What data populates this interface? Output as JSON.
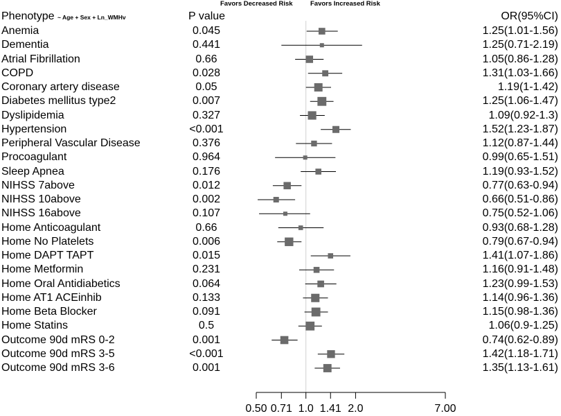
{
  "header": {
    "phenotype": "Phenotype",
    "phenotype_sub": "~ Age + Sex + Ln_WMHv",
    "pvalue": "P value",
    "or": "OR(95%CI)",
    "favors_decreased": "Favors Decreased Risk",
    "favors_increased": "Favors Increased Risk"
  },
  "chart_data": {
    "type": "forest",
    "title": "",
    "xlabel": "OR(95%CI)",
    "x_scale": "log",
    "reference_line": 1.0,
    "xlim": [
      0.5,
      7.0
    ],
    "xticks": [
      0.5,
      0.71,
      1.0,
      1.41,
      2.0,
      7.0
    ],
    "xtick_labels": [
      "0.50",
      "0.71",
      "1.0",
      "1.41",
      "2.0",
      "7.00"
    ],
    "rows": [
      {
        "label": "Anemia",
        "p": "0.045",
        "or": 1.25,
        "lo": 1.01,
        "hi": 1.56,
        "or_text": "1.25(1.01-1.56)"
      },
      {
        "label": "Dementia",
        "p": "0.441",
        "or": 1.25,
        "lo": 0.71,
        "hi": 2.19,
        "or_text": "1.25(0.71-2.19)"
      },
      {
        "label": "Atrial Fibrillation",
        "p": "0.66",
        "or": 1.05,
        "lo": 0.86,
        "hi": 1.28,
        "or_text": "1.05(0.86-1.28)"
      },
      {
        "label": "COPD",
        "p": "0.028",
        "or": 1.31,
        "lo": 1.03,
        "hi": 1.66,
        "or_text": "1.31(1.03-1.66)"
      },
      {
        "label": "Coronary artery disease",
        "p": "0.05",
        "or": 1.19,
        "lo": 1.0,
        "hi": 1.42,
        "or_text": "1.19(1-1.42)"
      },
      {
        "label": "Diabetes mellitus type2",
        "p": "0.007",
        "or": 1.25,
        "lo": 1.06,
        "hi": 1.47,
        "or_text": "1.25(1.06-1.47)"
      },
      {
        "label": "Dyslipidemia",
        "p": "0.327",
        "or": 1.09,
        "lo": 0.92,
        "hi": 1.3,
        "or_text": "1.09(0.92-1.3)"
      },
      {
        "label": "Hypertension",
        "p": "<0.001",
        "or": 1.52,
        "lo": 1.23,
        "hi": 1.87,
        "or_text": "1.52(1.23-1.87)"
      },
      {
        "label": "Peripheral Vascular Disease",
        "p": "0.376",
        "or": 1.12,
        "lo": 0.87,
        "hi": 1.44,
        "or_text": "1.12(0.87-1.44)"
      },
      {
        "label": "Procoagulant",
        "p": "0.964",
        "or": 0.99,
        "lo": 0.65,
        "hi": 1.51,
        "or_text": "0.99(0.65-1.51)"
      },
      {
        "label": "Sleep Apnea",
        "p": "0.176",
        "or": 1.19,
        "lo": 0.93,
        "hi": 1.52,
        "or_text": "1.19(0.93-1.52)"
      },
      {
        "label": "NIHSS 7above",
        "p": "0.012",
        "or": 0.77,
        "lo": 0.63,
        "hi": 0.94,
        "or_text": "0.77(0.63-0.94)"
      },
      {
        "label": "NIHSS 10above",
        "p": "0.002",
        "or": 0.66,
        "lo": 0.51,
        "hi": 0.86,
        "or_text": "0.66(0.51-0.86)"
      },
      {
        "label": "NIHSS 16above",
        "p": "0.107",
        "or": 0.75,
        "lo": 0.52,
        "hi": 1.06,
        "or_text": "0.75(0.52-1.06)"
      },
      {
        "label": "Home Anticoagulant",
        "p": "0.66",
        "or": 0.93,
        "lo": 0.68,
        "hi": 1.28,
        "or_text": "0.93(0.68-1.28)"
      },
      {
        "label": "Home No Platelets",
        "p": "0.006",
        "or": 0.79,
        "lo": 0.67,
        "hi": 0.94,
        "or_text": "0.79(0.67-0.94)"
      },
      {
        "label": "Home DAPT TAPT",
        "p": "0.015",
        "or": 1.41,
        "lo": 1.07,
        "hi": 1.86,
        "or_text": "1.41(1.07-1.86)"
      },
      {
        "label": "Home Metformin",
        "p": "0.231",
        "or": 1.16,
        "lo": 0.91,
        "hi": 1.48,
        "or_text": "1.16(0.91-1.48)"
      },
      {
        "label": "Home Oral Antidiabetics",
        "p": "0.064",
        "or": 1.23,
        "lo": 0.99,
        "hi": 1.53,
        "or_text": "1.23(0.99-1.53)"
      },
      {
        "label": "Home AT1 ACEinhib",
        "p": "0.133",
        "or": 1.14,
        "lo": 0.96,
        "hi": 1.36,
        "or_text": "1.14(0.96-1.36)"
      },
      {
        "label": "Home Beta Blocker",
        "p": "0.091",
        "or": 1.15,
        "lo": 0.98,
        "hi": 1.36,
        "or_text": "1.15(0.98-1.36)"
      },
      {
        "label": "Home Statins",
        "p": "0.5",
        "or": 1.06,
        "lo": 0.9,
        "hi": 1.25,
        "or_text": "1.06(0.9-1.25)"
      },
      {
        "label": "Outcome 90d mRS 0-2",
        "p": "0.001",
        "or": 0.74,
        "lo": 0.62,
        "hi": 0.89,
        "or_text": "0.74(0.62-0.89)"
      },
      {
        "label": "Outcome 90d mRS 3-5",
        "p": "<0.001",
        "or": 1.42,
        "lo": 1.18,
        "hi": 1.71,
        "or_text": "1.42(1.18-1.71)"
      },
      {
        "label": "Outcome 90d mRS 3-6",
        "p": "0.001",
        "or": 1.35,
        "lo": 1.13,
        "hi": 1.61,
        "or_text": "1.35(1.13-1.61)"
      }
    ],
    "colors": {
      "marker": "#6b6b6b",
      "ci_line": "#000000",
      "ref_line": "#d0d0d0"
    }
  }
}
